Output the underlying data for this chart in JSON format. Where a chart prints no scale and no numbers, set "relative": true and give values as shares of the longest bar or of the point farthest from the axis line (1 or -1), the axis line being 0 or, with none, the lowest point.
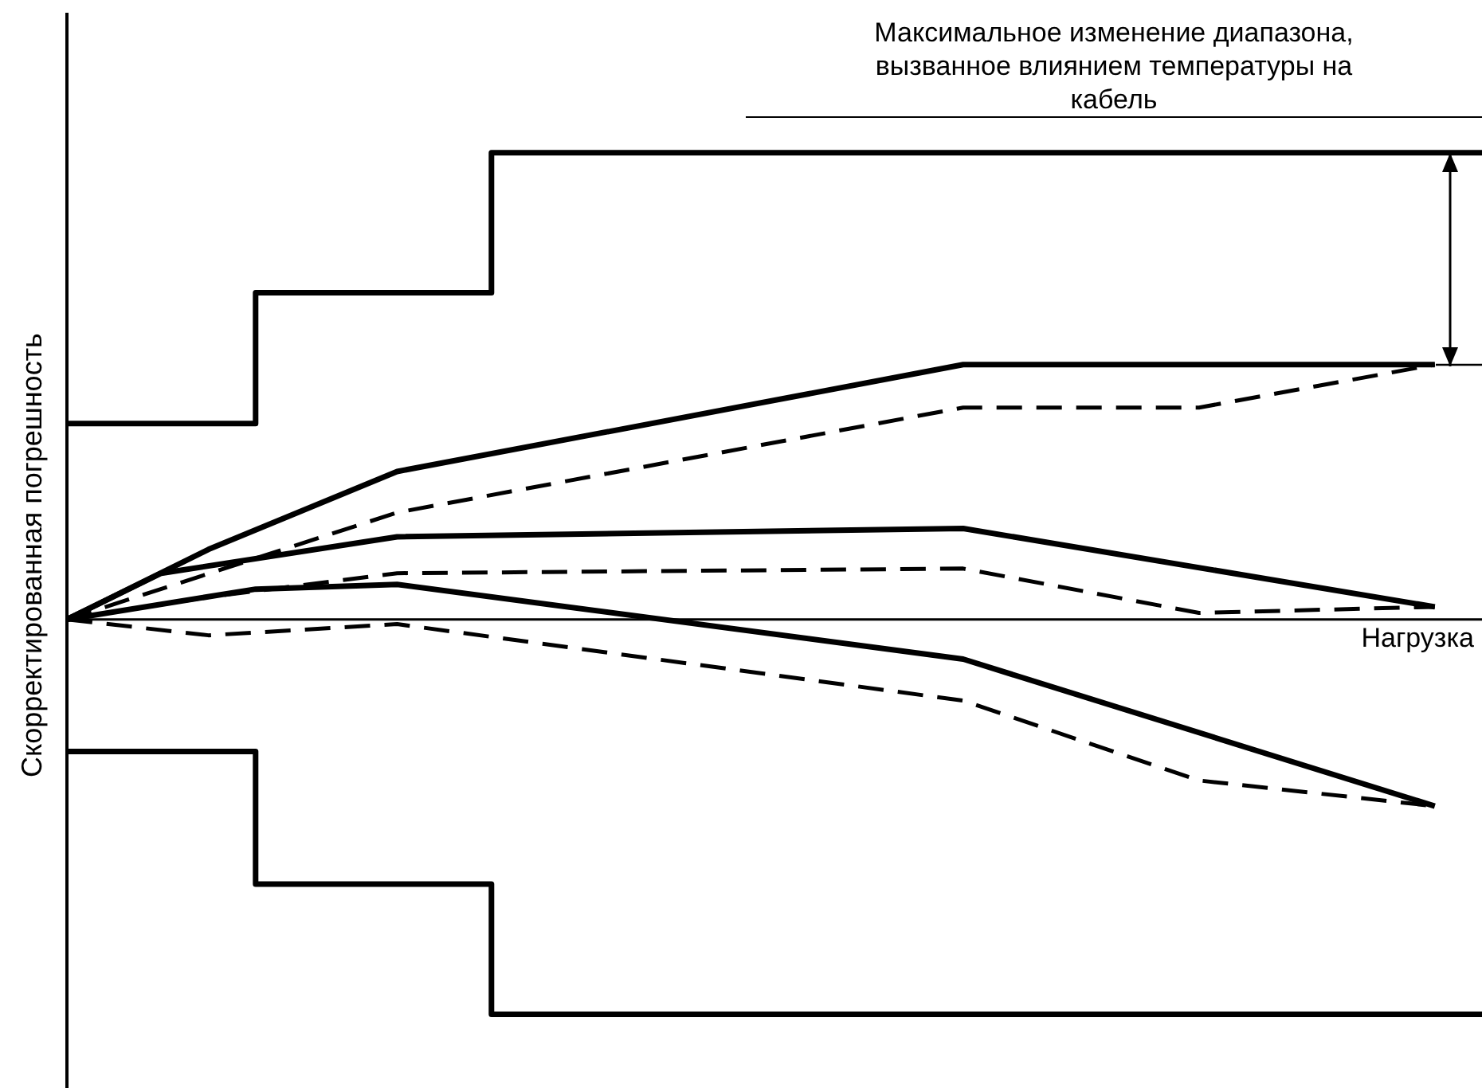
{
  "chart_data": {
    "type": "line",
    "relative": true,
    "xlabel": "Нагрузка",
    "ylabel": "Скорректированная погрешность",
    "annotations": [
      "Максимальное изменение диапазона, вызванное влиянием температуры на кабель"
    ],
    "categories": [
      null,
      null,
      null,
      null,
      null,
      null,
      null,
      null,
      null,
      null,
      null,
      null,
      null,
      null,
      null,
      null,
      null,
      null,
      null,
      null,
      null,
      null,
      null,
      null,
      null,
      null,
      null,
      null,
      null,
      null,
      null
    ],
    "grid": false,
    "legend": false,
    "marker": "none",
    "series": [
      {
        "type": "step",
        "color": "#000000",
        "line_style": "solid",
        "values": [
          0.42,
          null,
          null,
          null,
          0.7,
          null,
          null,
          null,
          null,
          1.0,
          null,
          null,
          null,
          null,
          null,
          null,
          null,
          null,
          null,
          null,
          null,
          null,
          null,
          null,
          null,
          null,
          null,
          null,
          null,
          null,
          1.0
        ]
      },
      {
        "type": "step",
        "color": "#000000",
        "line_style": "solid",
        "values": [
          -0.283,
          null,
          null,
          null,
          -0.567,
          null,
          null,
          null,
          null,
          -0.846,
          null,
          null,
          null,
          null,
          null,
          null,
          null,
          null,
          null,
          null,
          null,
          null,
          null,
          null,
          null,
          null,
          null,
          null,
          null,
          null,
          -0.846
        ]
      },
      {
        "color": "#000000",
        "line_style": "solid",
        "values": [
          0,
          null,
          null,
          0.15,
          null,
          null,
          null,
          0.317,
          null,
          null,
          null,
          null,
          null,
          null,
          null,
          null,
          null,
          null,
          null,
          0.546,
          null,
          null,
          null,
          null,
          null,
          null,
          null,
          null,
          null,
          0.546,
          null
        ]
      },
      {
        "color": "#000000",
        "line_style": "solid",
        "values": [
          0,
          null,
          0.099,
          null,
          null,
          null,
          null,
          0.177,
          null,
          null,
          null,
          null,
          null,
          null,
          null,
          null,
          null,
          null,
          null,
          0.195,
          null,
          null,
          null,
          null,
          null,
          null,
          null,
          null,
          null,
          0.027,
          null
        ]
      },
      {
        "color": "#000000",
        "line_style": "solid",
        "values": [
          0,
          null,
          null,
          null,
          0.065,
          null,
          null,
          0.075,
          null,
          null,
          null,
          null,
          null,
          null,
          null,
          null,
          null,
          null,
          null,
          -0.085,
          null,
          null,
          null,
          null,
          null,
          null,
          null,
          null,
          null,
          -0.4,
          null
        ]
      },
      {
        "color": "#000000",
        "line_style": "dashed",
        "values": [
          0,
          null,
          null,
          null,
          null,
          null,
          null,
          0.229,
          null,
          null,
          null,
          null,
          null,
          null,
          null,
          null,
          null,
          null,
          null,
          0.454,
          null,
          null,
          null,
          null,
          0.454,
          null,
          null,
          null,
          null,
          0.546,
          null
        ]
      },
      {
        "color": "#000000",
        "line_style": "dashed",
        "values": [
          0,
          null,
          null,
          0.048,
          null,
          null,
          null,
          0.099,
          null,
          null,
          null,
          null,
          null,
          null,
          null,
          null,
          null,
          null,
          null,
          0.109,
          null,
          null,
          null,
          null,
          0.014,
          null,
          null,
          null,
          null,
          0.027,
          null
        ]
      },
      {
        "color": "#000000",
        "line_style": "dashed",
        "values": [
          0,
          null,
          null,
          -0.034,
          null,
          null,
          null,
          -0.01,
          null,
          null,
          null,
          null,
          null,
          null,
          null,
          null,
          null,
          null,
          null,
          -0.174,
          null,
          null,
          null,
          null,
          -0.345,
          null,
          null,
          null,
          null,
          -0.4,
          null
        ]
      }
    ]
  }
}
